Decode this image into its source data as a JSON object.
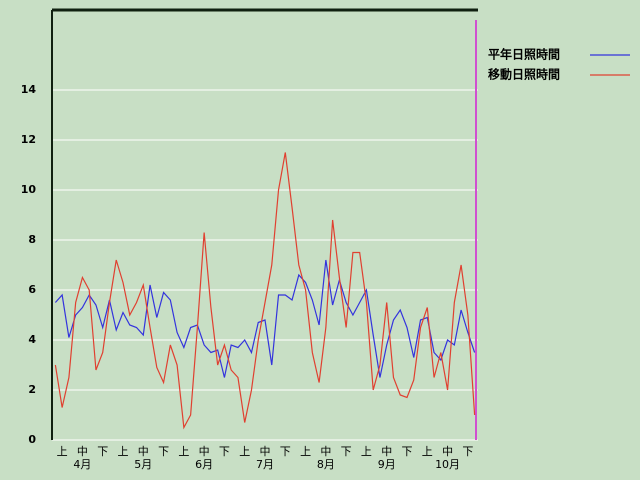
{
  "chart_data": {
    "type": "line",
    "categories": [
      null,
      "上",
      null,
      null,
      "中",
      null,
      null,
      "下",
      null,
      null,
      "上",
      null,
      null,
      "中",
      null,
      null,
      "下",
      null,
      null,
      "上",
      null,
      null,
      "中",
      null,
      null,
      "下",
      null,
      null,
      "上",
      null,
      null,
      "中",
      null,
      null,
      "下",
      null,
      null,
      "上",
      null,
      null,
      "中",
      null,
      null,
      "下",
      null,
      null,
      "上",
      null,
      null,
      "中",
      null,
      null,
      "下",
      null,
      null,
      "上",
      null,
      null,
      "中",
      null,
      null,
      "下",
      null
    ],
    "month_labels": [
      "4月",
      "5月",
      "6月",
      "7月",
      "8月",
      "9月",
      "10月"
    ],
    "series": [
      {
        "name": "平年日照時間",
        "color": "#3333dd",
        "values": [
          5.5,
          5.8,
          4.1,
          5.0,
          5.3,
          5.8,
          5.4,
          4.5,
          5.6,
          4.4,
          5.1,
          4.6,
          4.5,
          4.2,
          6.2,
          4.9,
          5.9,
          5.6,
          4.3,
          3.7,
          4.5,
          4.6,
          3.8,
          3.5,
          3.6,
          2.5,
          3.8,
          3.7,
          4.0,
          3.5,
          4.7,
          4.8,
          3.0,
          5.8,
          5.8,
          5.6,
          6.6,
          6.3,
          5.6,
          4.6,
          7.2,
          5.4,
          6.4,
          5.5,
          5.0,
          5.5,
          6.0,
          4.2,
          2.5,
          3.8,
          4.8,
          5.2,
          4.5,
          3.3,
          4.8,
          4.9,
          3.5,
          3.2,
          4.0,
          3.8,
          5.2,
          4.3,
          3.5
        ]
      },
      {
        "name": "移動日照時間",
        "color": "#e04030",
        "values": [
          3.0,
          1.3,
          2.5,
          5.5,
          6.5,
          6.0,
          2.8,
          3.5,
          5.5,
          7.2,
          6.3,
          5.0,
          5.5,
          6.2,
          4.5,
          2.9,
          2.3,
          3.8,
          3.0,
          0.5,
          1.0,
          4.5,
          8.3,
          5.3,
          3.0,
          3.8,
          2.8,
          2.5,
          0.7,
          2.0,
          4.0,
          5.5,
          7.0,
          10.0,
          11.5,
          9.3,
          7.0,
          6.0,
          3.5,
          2.3,
          4.5,
          8.8,
          6.5,
          4.5,
          7.5,
          7.5,
          5.5,
          2.0,
          3.0,
          5.5,
          2.5,
          1.8,
          1.7,
          2.4,
          4.5,
          5.3,
          2.5,
          3.5,
          2.0,
          5.5,
          7.0,
          5.0,
          1.0
        ]
      }
    ],
    "ylim": [
      0,
      17.2
    ],
    "yticks": [
      0,
      2,
      4,
      6,
      8,
      10,
      12,
      14
    ],
    "grid": true
  }
}
